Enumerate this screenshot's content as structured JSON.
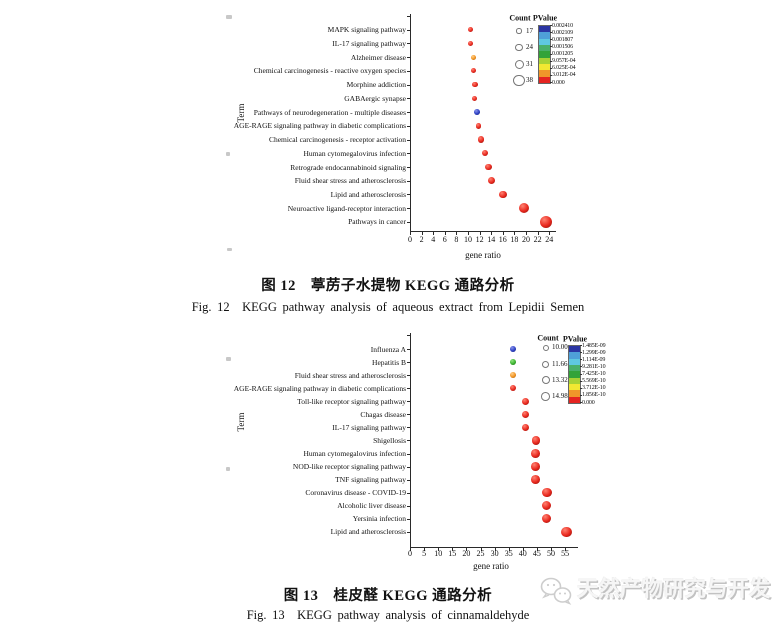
{
  "figure12": {
    "caption_zh": "图 12　葶苈子水提物 KEGG 通路分析",
    "caption_en": "Fig. 12　KEGG pathway analysis of aqueous extract from Lepidii Semen"
  },
  "figure13": {
    "caption_zh": "图 13　桂皮醛 KEGG 通路分析",
    "caption_en": "Fig. 13　KEGG pathway analysis of cinnamaldehyde"
  },
  "watermark": {
    "icon": "wechat-logo-icon",
    "text": "天然产物研究与开发"
  },
  "chart_data": [
    {
      "id": "fig12",
      "type": "scatter",
      "xlabel": "gene ratio",
      "ylabel": "Term",
      "xlim": [
        0,
        25.5
      ],
      "xticks": [
        0,
        2,
        4,
        6,
        8,
        10,
        12,
        14,
        16,
        18,
        20,
        22,
        24
      ],
      "grid": false,
      "legend": {
        "position": "top-right",
        "count_title": "Count",
        "count_items": [
          {
            "label": "17",
            "r": 2.7
          },
          {
            "label": "24",
            "r": 3.7
          },
          {
            "label": "31",
            "r": 4.5
          },
          {
            "label": "38",
            "r": 5.6
          }
        ],
        "pvalue_title": "PValue",
        "pvalue_ticks": [
          "0.002410",
          "0.002109",
          "0.001807",
          "0.001506",
          "0.001205",
          "9.057E-04",
          "6.025E-04",
          "3.012E-04",
          "0.000"
        ],
        "colorbar_colors": [
          "#2b35a3",
          "#4f9fd8",
          "#5fc8e0",
          "#49b06a",
          "#33a339",
          "#a8d234",
          "#f2e832",
          "#f0962a",
          "#e52421"
        ]
      },
      "size_scale": {
        "count_range": [
          17,
          38
        ],
        "r_range": [
          2.4,
          6.0
        ]
      },
      "points": [
        {
          "term": "MAPK signaling pathway",
          "gene_ratio": 10.4,
          "count": 18,
          "color": "red"
        },
        {
          "term": "IL-17 signaling pathway",
          "gene_ratio": 10.4,
          "count": 18,
          "color": "red"
        },
        {
          "term": "Alzheimer disease",
          "gene_ratio": 10.9,
          "count": 17,
          "color": "orange"
        },
        {
          "term": "Chemical carcinogenesis - reactive oxygen species",
          "gene_ratio": 11.0,
          "count": 18,
          "color": "red"
        },
        {
          "term": "Morphine addiction",
          "gene_ratio": 11.2,
          "count": 18,
          "color": "red"
        },
        {
          "term": "GABAergic synapse",
          "gene_ratio": 11.1,
          "count": 18,
          "color": "red"
        },
        {
          "term": "Pathways of neurodegeneration - multiple diseases",
          "gene_ratio": 11.6,
          "count": 20,
          "color": "blue"
        },
        {
          "term": "AGE-RAGE signaling pathway in diabetic complications",
          "gene_ratio": 11.8,
          "count": 20,
          "color": "red"
        },
        {
          "term": "Chemical carcinogenesis - receptor activation",
          "gene_ratio": 12.3,
          "count": 21,
          "color": "red"
        },
        {
          "term": "Human cytomegalovirus infection",
          "gene_ratio": 13.0,
          "count": 21,
          "color": "red"
        },
        {
          "term": "Retrograde endocannabinoid signaling",
          "gene_ratio": 13.5,
          "count": 22,
          "color": "red"
        },
        {
          "term": "Fluid shear stress and atherosclerosis",
          "gene_ratio": 14.1,
          "count": 24,
          "color": "red"
        },
        {
          "term": "Lipid and atherosclerosis",
          "gene_ratio": 16.0,
          "count": 26,
          "color": "red"
        },
        {
          "term": "Neuroactive ligand-receptor interaction",
          "gene_ratio": 19.6,
          "count": 33,
          "color": "red"
        },
        {
          "term": "Pathways in cancer",
          "gene_ratio": 23.5,
          "count": 38,
          "color": "red"
        }
      ]
    },
    {
      "id": "fig13",
      "type": "scatter",
      "xlabel": "gene ratio",
      "ylabel": "Term",
      "xlim": [
        0,
        58
      ],
      "xticks": [
        0,
        5,
        10,
        15,
        20,
        25,
        30,
        35,
        40,
        45,
        50,
        55
      ],
      "grid": false,
      "legend": {
        "position": "top-right",
        "count_title": "Count",
        "count_items": [
          {
            "label": "10.00",
            "r": 3.2
          },
          {
            "label": "11.66",
            "r": 3.6
          },
          {
            "label": "13.32",
            "r": 4.0
          },
          {
            "label": "14.98",
            "r": 4.4
          }
        ],
        "pvalue_title": "PValue",
        "pvalue_ticks": [
          "1.485E-09",
          "1.299E-09",
          "1.114E-09",
          "9.281E-10",
          "7.425E-10",
          "5.569E-10",
          "3.712E-10",
          "1.856E-10",
          "0.000"
        ],
        "colorbar_colors": [
          "#2b35a3",
          "#4f9fd8",
          "#5fc8e0",
          "#49b06a",
          "#33a339",
          "#a8d234",
          "#f2e832",
          "#f0962a",
          "#e52421"
        ]
      },
      "size_scale": {
        "count_range": [
          10,
          14.98
        ],
        "r_range": [
          2.9,
          5.1
        ]
      },
      "points": [
        {
          "term": "Influenza A",
          "gene_ratio": 36.5,
          "count": 10,
          "color": "blue"
        },
        {
          "term": "Hepatitis B",
          "gene_ratio": 36.4,
          "count": 10,
          "color": "green"
        },
        {
          "term": "Fluid shear stress and atherosclerosis",
          "gene_ratio": 36.5,
          "count": 10,
          "color": "orange"
        },
        {
          "term": "AGE-RAGE signaling pathway in diabetic complications",
          "gene_ratio": 36.6,
          "count": 10.4,
          "color": "red"
        },
        {
          "term": "Toll-like receptor signaling pathway",
          "gene_ratio": 41.0,
          "count": 11.7,
          "color": "red"
        },
        {
          "term": "Chagas disease",
          "gene_ratio": 40.9,
          "count": 11.7,
          "color": "red"
        },
        {
          "term": "IL-17 signaling pathway",
          "gene_ratio": 41.0,
          "count": 11.7,
          "color": "red"
        },
        {
          "term": "Shigellosis",
          "gene_ratio": 44.7,
          "count": 13.3,
          "color": "red"
        },
        {
          "term": "Human cytomegalovirus infection",
          "gene_ratio": 44.5,
          "count": 13.3,
          "color": "red"
        },
        {
          "term": "NOD-like receptor signaling pathway",
          "gene_ratio": 44.5,
          "count": 13.3,
          "color": "red"
        },
        {
          "term": "TNF signaling pathway",
          "gene_ratio": 44.5,
          "count": 13.3,
          "color": "red"
        },
        {
          "term": "Coronavirus disease - COVID-19",
          "gene_ratio": 48.6,
          "count": 13.8,
          "color": "red"
        },
        {
          "term": "Alcoholic liver disease",
          "gene_ratio": 48.5,
          "count": 13.8,
          "color": "red"
        },
        {
          "term": "Yersinia infection",
          "gene_ratio": 48.3,
          "count": 13.6,
          "color": "red"
        },
        {
          "term": "Lipid and atherosclerosis",
          "gene_ratio": 55.5,
          "count": 14.98,
          "color": "red"
        }
      ]
    }
  ]
}
